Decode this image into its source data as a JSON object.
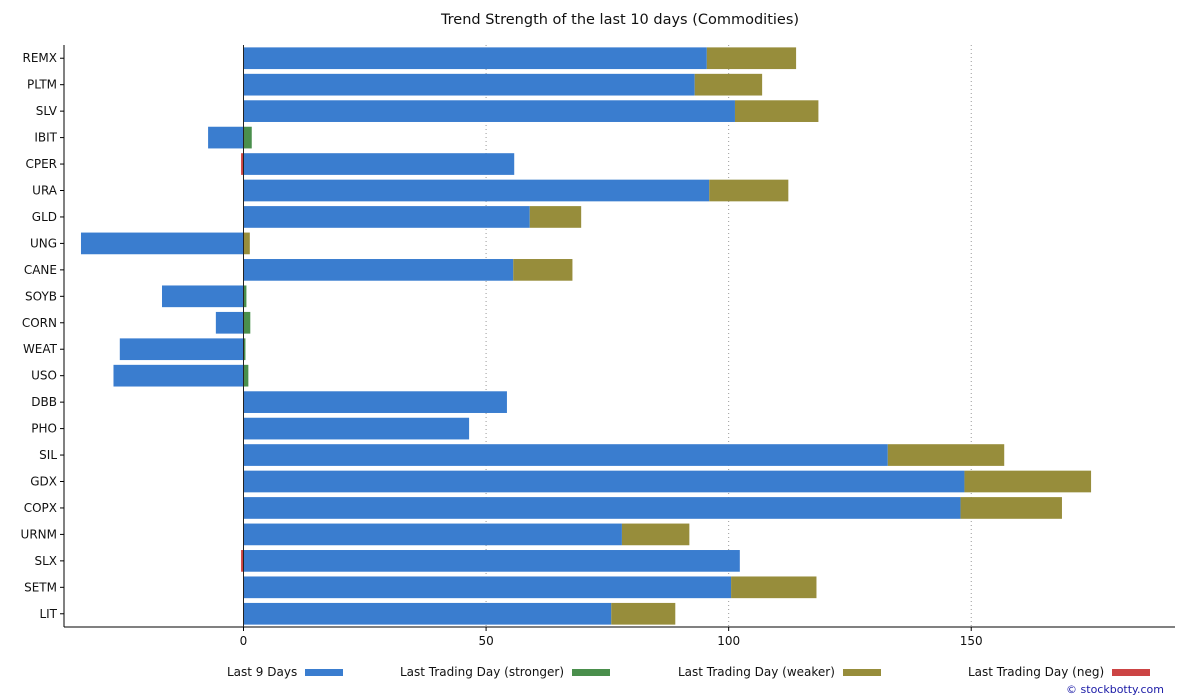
{
  "chart_data": {
    "type": "bar",
    "orientation": "horizontal",
    "stacked": true,
    "title": "Trend Strength of the last 10 days (Commodities)",
    "xlabel": "",
    "ylabel": "",
    "xlim": [
      -37,
      192
    ],
    "xticks": [
      0,
      50,
      100,
      150
    ],
    "grid": "vertical dotted",
    "legend_position": "bottom",
    "categories": [
      "REMX",
      "PLTM",
      "SLV",
      "IBIT",
      "CPER",
      "URA",
      "GLD",
      "UNG",
      "CANE",
      "SOYB",
      "CORN",
      "WEAT",
      "USO",
      "DBB",
      "PHO",
      "SIL",
      "GDX",
      "COPX",
      "URNM",
      "SLX",
      "SETM",
      "LIT"
    ],
    "series": [
      {
        "name": "Last 9 Days",
        "color": "#3a7dcf",
        "values": [
          95.5,
          93,
          101.3,
          -7.3,
          55.8,
          96,
          59,
          -33.5,
          55.6,
          -16.8,
          -5.7,
          -25.5,
          -26.8,
          54.3,
          46.5,
          132.8,
          148.6,
          147.8,
          78,
          102.3,
          100.5,
          75.8
        ]
      },
      {
        "name": "Last Trading Day (stronger)",
        "color": "#4a8f4c",
        "values": [
          0,
          0,
          0,
          1.7,
          0,
          0,
          0,
          0,
          0,
          0.6,
          1.4,
          0.4,
          1.0,
          0,
          0,
          0,
          0,
          0,
          0,
          0,
          0,
          0
        ]
      },
      {
        "name": "Last Trading Day (weaker)",
        "color": "#978d3b",
        "values": [
          18.4,
          13.9,
          17.2,
          0,
          0,
          16.3,
          10.6,
          1.3,
          12.2,
          0,
          0,
          0,
          0,
          0,
          0,
          24.0,
          26.1,
          20.9,
          13.9,
          0,
          17.6,
          13.2
        ]
      },
      {
        "name": "Last Trading Day (neg)",
        "color": "#cc4444",
        "values": [
          0,
          0,
          0,
          0,
          -0.5,
          0,
          0,
          0,
          0,
          0,
          0,
          0,
          0,
          0,
          0,
          0,
          0,
          0,
          0,
          -0.5,
          0,
          0
        ]
      }
    ]
  },
  "credit": "© stockbotty.com"
}
